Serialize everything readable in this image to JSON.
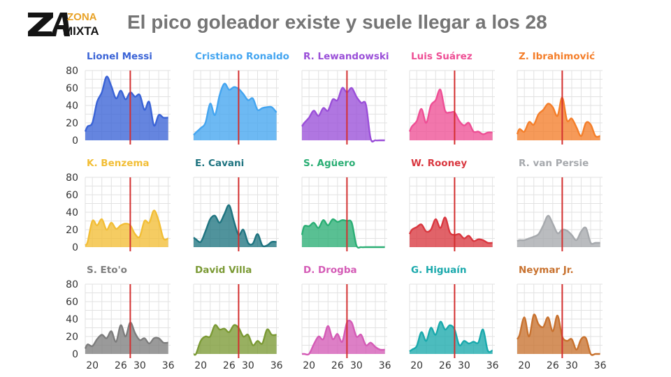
{
  "header": {
    "title": "El pico goleador existe y suele llegar a los 28",
    "logo_top": "ZONA",
    "logo_bottom": "MIXTA"
  },
  "chart_data": {
    "type": "area",
    "layout": "small-multiples 3x5",
    "x_ticks": [
      20,
      26,
      30,
      36
    ],
    "y_ticks": [
      0,
      20,
      40,
      60,
      80
    ],
    "xlim": [
      18.5,
      36.5
    ],
    "ylim": [
      0,
      80
    ],
    "reference_line": {
      "x": 28,
      "color": "#d32f2f"
    },
    "grid": true,
    "panels": [
      {
        "name": "Lionel Messi",
        "color": "#3a63d6",
        "x": [
          18.5,
          19,
          20,
          21,
          22,
          23,
          24,
          25,
          26,
          27,
          28,
          29,
          30,
          31,
          32,
          33,
          34,
          35,
          36
        ],
        "y": [
          10,
          16,
          20,
          44,
          55,
          73,
          62,
          48,
          57,
          47,
          55,
          50,
          52,
          35,
          44,
          17,
          29,
          26,
          26
        ]
      },
      {
        "name": "Cristiano Ronaldo",
        "color": "#44a5f0",
        "x": [
          18.5,
          19,
          20,
          21,
          22,
          23,
          24,
          25,
          26,
          27,
          28,
          29,
          30,
          31,
          32,
          33,
          34,
          35,
          36
        ],
        "y": [
          6,
          9,
          14,
          20,
          42,
          29,
          52,
          65,
          58,
          61,
          59,
          53,
          46,
          48,
          35,
          37,
          38,
          38,
          32
        ]
      },
      {
        "name": "R. Lewandowski",
        "color": "#9a4fd8",
        "x": [
          18.5,
          19,
          20,
          21,
          22,
          23,
          24,
          25,
          26,
          27,
          28,
          29,
          30,
          31,
          32,
          33,
          34,
          35,
          36
        ],
        "y": [
          16,
          20,
          26,
          34,
          28,
          37,
          34,
          47,
          46,
          60,
          55,
          60,
          50,
          43,
          41,
          2,
          0,
          0,
          0
        ]
      },
      {
        "name": "Luis Suárez",
        "color": "#ee4f95",
        "x": [
          18.5,
          19,
          20,
          21,
          22,
          23,
          24,
          25,
          26,
          27,
          28,
          29,
          30,
          31,
          32,
          33,
          34,
          35,
          36
        ],
        "y": [
          10,
          16,
          22,
          36,
          20,
          40,
          46,
          58,
          34,
          32,
          32,
          22,
          17,
          20,
          10,
          10,
          7,
          9,
          9
        ]
      },
      {
        "name": "Z. Ibrahimović",
        "color": "#f47e2a",
        "x": [
          18.5,
          19,
          20,
          21,
          22,
          23,
          24,
          25,
          26,
          27,
          28,
          29,
          30,
          31,
          32,
          33,
          34,
          35,
          36
        ],
        "y": [
          7,
          13,
          10,
          21,
          18,
          30,
          35,
          42,
          38,
          28,
          49,
          23,
          25,
          15,
          5,
          20,
          18,
          5,
          5
        ]
      },
      {
        "name": "K. Benzema",
        "color": "#f2be36",
        "x": [
          18.5,
          19,
          20,
          21,
          22,
          23,
          24,
          25,
          26,
          27,
          28,
          29,
          30,
          31,
          32,
          33,
          34,
          35,
          36
        ],
        "y": [
          2,
          6,
          30,
          25,
          32,
          20,
          28,
          21,
          25,
          27,
          25,
          15,
          12,
          30,
          28,
          42,
          30,
          10,
          10
        ]
      },
      {
        "name": "E. Cavani",
        "color": "#1f7480",
        "x": [
          18.5,
          19,
          20,
          21,
          22,
          23,
          24,
          25,
          26,
          27,
          28,
          29,
          30,
          31,
          32,
          33,
          34,
          35,
          36
        ],
        "y": [
          11,
          9,
          6,
          18,
          32,
          36,
          28,
          38,
          48,
          30,
          14,
          20,
          5,
          4,
          15,
          2,
          2,
          6,
          6
        ]
      },
      {
        "name": "S. Agüero",
        "color": "#2aae74",
        "x": [
          18.5,
          19,
          20,
          21,
          22,
          23,
          24,
          25,
          26,
          27,
          28,
          29,
          30,
          31,
          32,
          33,
          34,
          35,
          36
        ],
        "y": [
          14,
          24,
          24,
          28,
          22,
          31,
          25,
          32,
          29,
          31,
          30,
          28,
          2,
          0,
          0,
          0,
          0,
          0,
          0
        ]
      },
      {
        "name": "W. Rooney",
        "color": "#d9373f",
        "x": [
          18.5,
          19,
          20,
          21,
          22,
          23,
          24,
          25,
          26,
          27,
          28,
          29,
          30,
          31,
          32,
          33,
          34,
          35,
          36
        ],
        "y": [
          15,
          20,
          23,
          26,
          18,
          20,
          32,
          22,
          34,
          17,
          14,
          15,
          10,
          13,
          7,
          9,
          8,
          5,
          5
        ]
      },
      {
        "name": "R. van Persie",
        "color": "#a6a9ad",
        "x": [
          18.5,
          19,
          20,
          21,
          22,
          23,
          24,
          25,
          26,
          27,
          28,
          29,
          30,
          31,
          32,
          33,
          34,
          35,
          36
        ],
        "y": [
          7,
          8,
          8,
          10,
          12,
          15,
          25,
          36,
          27,
          16,
          20,
          19,
          14,
          8,
          18,
          22,
          5,
          5,
          5
        ]
      },
      {
        "name": "S. Eto'o",
        "color": "#7d7d7d",
        "x": [
          18.5,
          19,
          20,
          21,
          22,
          23,
          24,
          25,
          26,
          27,
          28,
          29,
          30,
          31,
          32,
          33,
          34,
          35,
          36
        ],
        "y": [
          6,
          11,
          9,
          17,
          22,
          18,
          26,
          14,
          33,
          20,
          36,
          24,
          16,
          18,
          12,
          18,
          18,
          13,
          13
        ]
      },
      {
        "name": "David Villa",
        "color": "#7b9a35",
        "x": [
          18.5,
          19,
          20,
          21,
          22,
          23,
          24,
          25,
          26,
          27,
          28,
          29,
          30,
          31,
          32,
          33,
          34,
          35,
          36
        ],
        "y": [
          0,
          0,
          15,
          20,
          20,
          33,
          28,
          29,
          25,
          33,
          30,
          20,
          22,
          10,
          15,
          12,
          28,
          22,
          22
        ]
      },
      {
        "name": "D. Drogba",
        "color": "#d45bb6",
        "x": [
          18.5,
          19,
          20,
          21,
          22,
          23,
          24,
          25,
          26,
          27,
          28,
          29,
          30,
          31,
          32,
          33,
          34,
          35,
          36
        ],
        "y": [
          0,
          0,
          0,
          11,
          20,
          17,
          32,
          17,
          23,
          14,
          36,
          36,
          20,
          22,
          10,
          13,
          8,
          5,
          5
        ]
      },
      {
        "name": "G. Higuaín",
        "color": "#1aa9ac",
        "x": [
          18.5,
          19,
          20,
          21,
          22,
          23,
          24,
          25,
          26,
          27,
          28,
          29,
          30,
          31,
          32,
          33,
          34,
          35,
          36
        ],
        "y": [
          3,
          5,
          9,
          25,
          15,
          30,
          22,
          37,
          28,
          33,
          28,
          10,
          15,
          12,
          14,
          13,
          28,
          4,
          4
        ]
      },
      {
        "name": "Neymar Jr.",
        "color": "#c8722f",
        "x": [
          18.5,
          19,
          20,
          21,
          22,
          23,
          24,
          25,
          26,
          27,
          28,
          29,
          30,
          31,
          32,
          33,
          34,
          35,
          36
        ],
        "y": [
          17,
          22,
          42,
          20,
          45,
          34,
          31,
          42,
          26,
          44,
          20,
          15,
          17,
          5,
          17,
          18,
          0,
          0,
          0
        ]
      }
    ]
  }
}
